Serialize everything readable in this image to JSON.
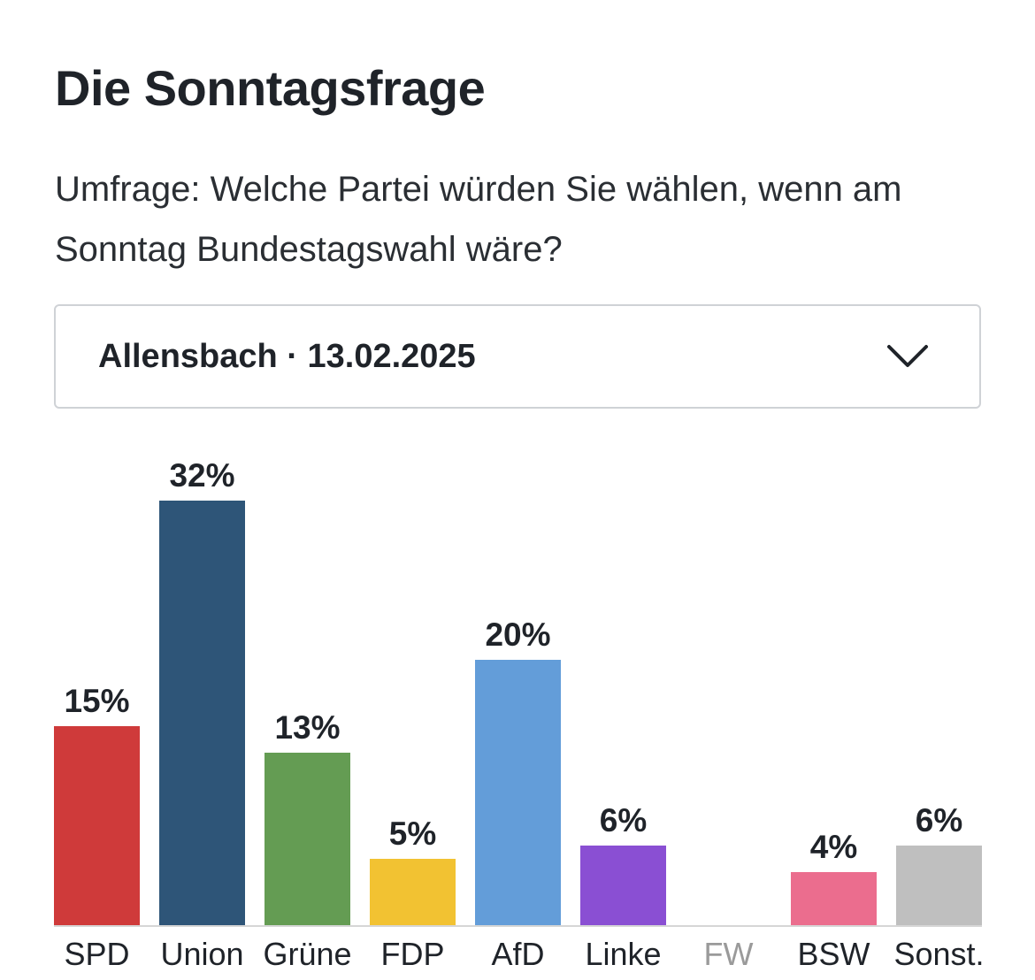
{
  "header": {
    "title": "Die Sonntagsfrage",
    "subtitle": "Umfrage: Welche Partei würden Sie wählen, wenn am Sonntag Bundestagswahl wäre?"
  },
  "selector": {
    "selected": "Allensbach · 13.02.2025",
    "icon": "chevron-down-icon"
  },
  "chart_data": {
    "type": "bar",
    "title": "Die Sonntagsfrage",
    "xlabel": "",
    "ylabel": "",
    "ylim": [
      0,
      32
    ],
    "categories": [
      "SPD",
      "Union",
      "Grüne",
      "FDP",
      "AfD",
      "Linke",
      "FW",
      "BSW",
      "Sonst."
    ],
    "values": [
      15,
      32,
      13,
      5,
      20,
      6,
      null,
      4,
      6
    ],
    "labels": [
      "15%",
      "32%",
      "13%",
      "5%",
      "20%",
      "6%",
      "",
      "4%",
      "6%"
    ],
    "colors": [
      "#cf3a3a",
      "#2e5578",
      "#649c53",
      "#f2c232",
      "#639dd9",
      "#8a4fd3",
      "#bdbdbd",
      "#eb6d8e",
      "#bfbfbf"
    ],
    "muted_categories": [
      "FW"
    ],
    "text_color": "#1f2329",
    "muted_text_color": "#9a9a9a",
    "baseline_color": "#d6d6d6",
    "grid": false
  }
}
